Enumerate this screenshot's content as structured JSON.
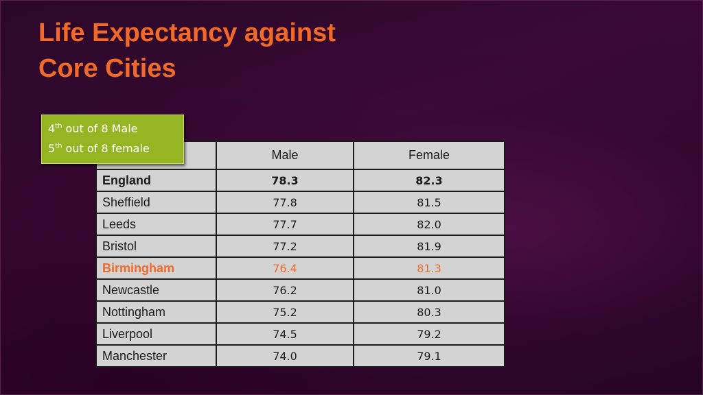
{
  "title": {
    "line1": "Life Expectancy against",
    "line2": "Core Cities"
  },
  "callout": {
    "line1": {
      "num": "4",
      "sup": "th",
      "text": " out of 8 Male"
    },
    "line2": {
      "num": "5",
      "sup": "th",
      "text": " out of 8 female"
    }
  },
  "table": {
    "headers": [
      "",
      "Male",
      "Female"
    ],
    "rows": [
      {
        "city": "England",
        "male": "78.3",
        "female": "82.3"
      },
      {
        "city": "Sheffield",
        "male": "77.8",
        "female": "81.5"
      },
      {
        "city": "Leeds",
        "male": "77.7",
        "female": "82.0"
      },
      {
        "city": "Bristol",
        "male": "77.2",
        "female": "81.9"
      },
      {
        "city": "Birmingham",
        "male": "76.4",
        "female": "81.3"
      },
      {
        "city": "Newcastle",
        "male": "76.2",
        "female": "81.0"
      },
      {
        "city": "Nottingham",
        "male": "75.2",
        "female": "80.3"
      },
      {
        "city": "Liverpool",
        "male": "74.5",
        "female": "79.2"
      },
      {
        "city": "Manchester",
        "male": "74.0",
        "female": "79.1"
      }
    ]
  },
  "colors": {
    "title": "#f26a2a",
    "highlight": "#f26a2a",
    "callout_bg": "#95b523",
    "table_bg": "#d3d3d3"
  }
}
